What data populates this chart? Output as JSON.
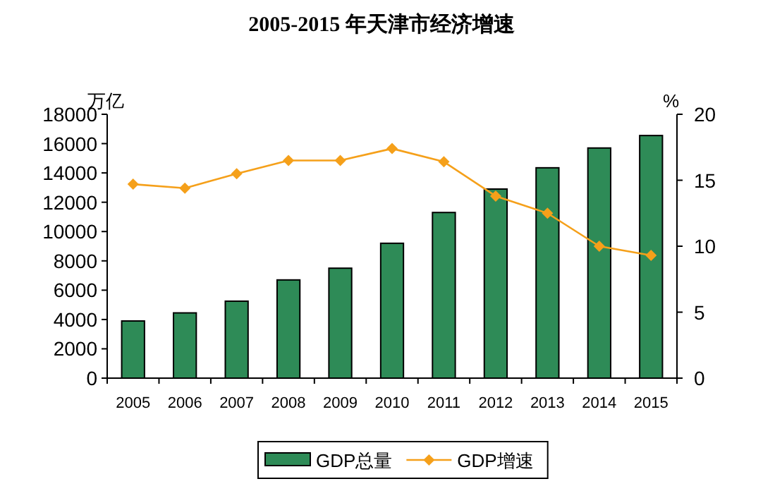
{
  "chart_data": {
    "type": "bar",
    "title": "2005-2015 年天津市经济增速",
    "ylabel": "万亿",
    "y2label": "%",
    "categories": [
      "2005",
      "2006",
      "2007",
      "2008",
      "2009",
      "2010",
      "2011",
      "2012",
      "2013",
      "2014",
      "2015"
    ],
    "series": [
      {
        "name": "GDP总量",
        "color": "#2e8b57",
        "values": [
          3900,
          4450,
          5250,
          6700,
          7500,
          9200,
          11300,
          12900,
          14350,
          15700,
          16550
        ]
      },
      {
        "name": "GDP增速",
        "type": "line",
        "axis": "y2",
        "color": "#f5a01a",
        "marker": "diamond",
        "values": [
          14.7,
          14.4,
          15.5,
          16.5,
          16.5,
          17.4,
          16.4,
          13.8,
          12.5,
          10.0,
          9.3
        ]
      }
    ],
    "ylim": [
      0,
      18000
    ],
    "yticks": [
      0,
      2000,
      4000,
      6000,
      8000,
      10000,
      12000,
      14000,
      16000,
      18000
    ],
    "y2lim": [
      0,
      20
    ],
    "y2ticks": [
      0,
      5,
      10,
      15,
      20
    ],
    "legend": "bottom",
    "grid": false
  }
}
